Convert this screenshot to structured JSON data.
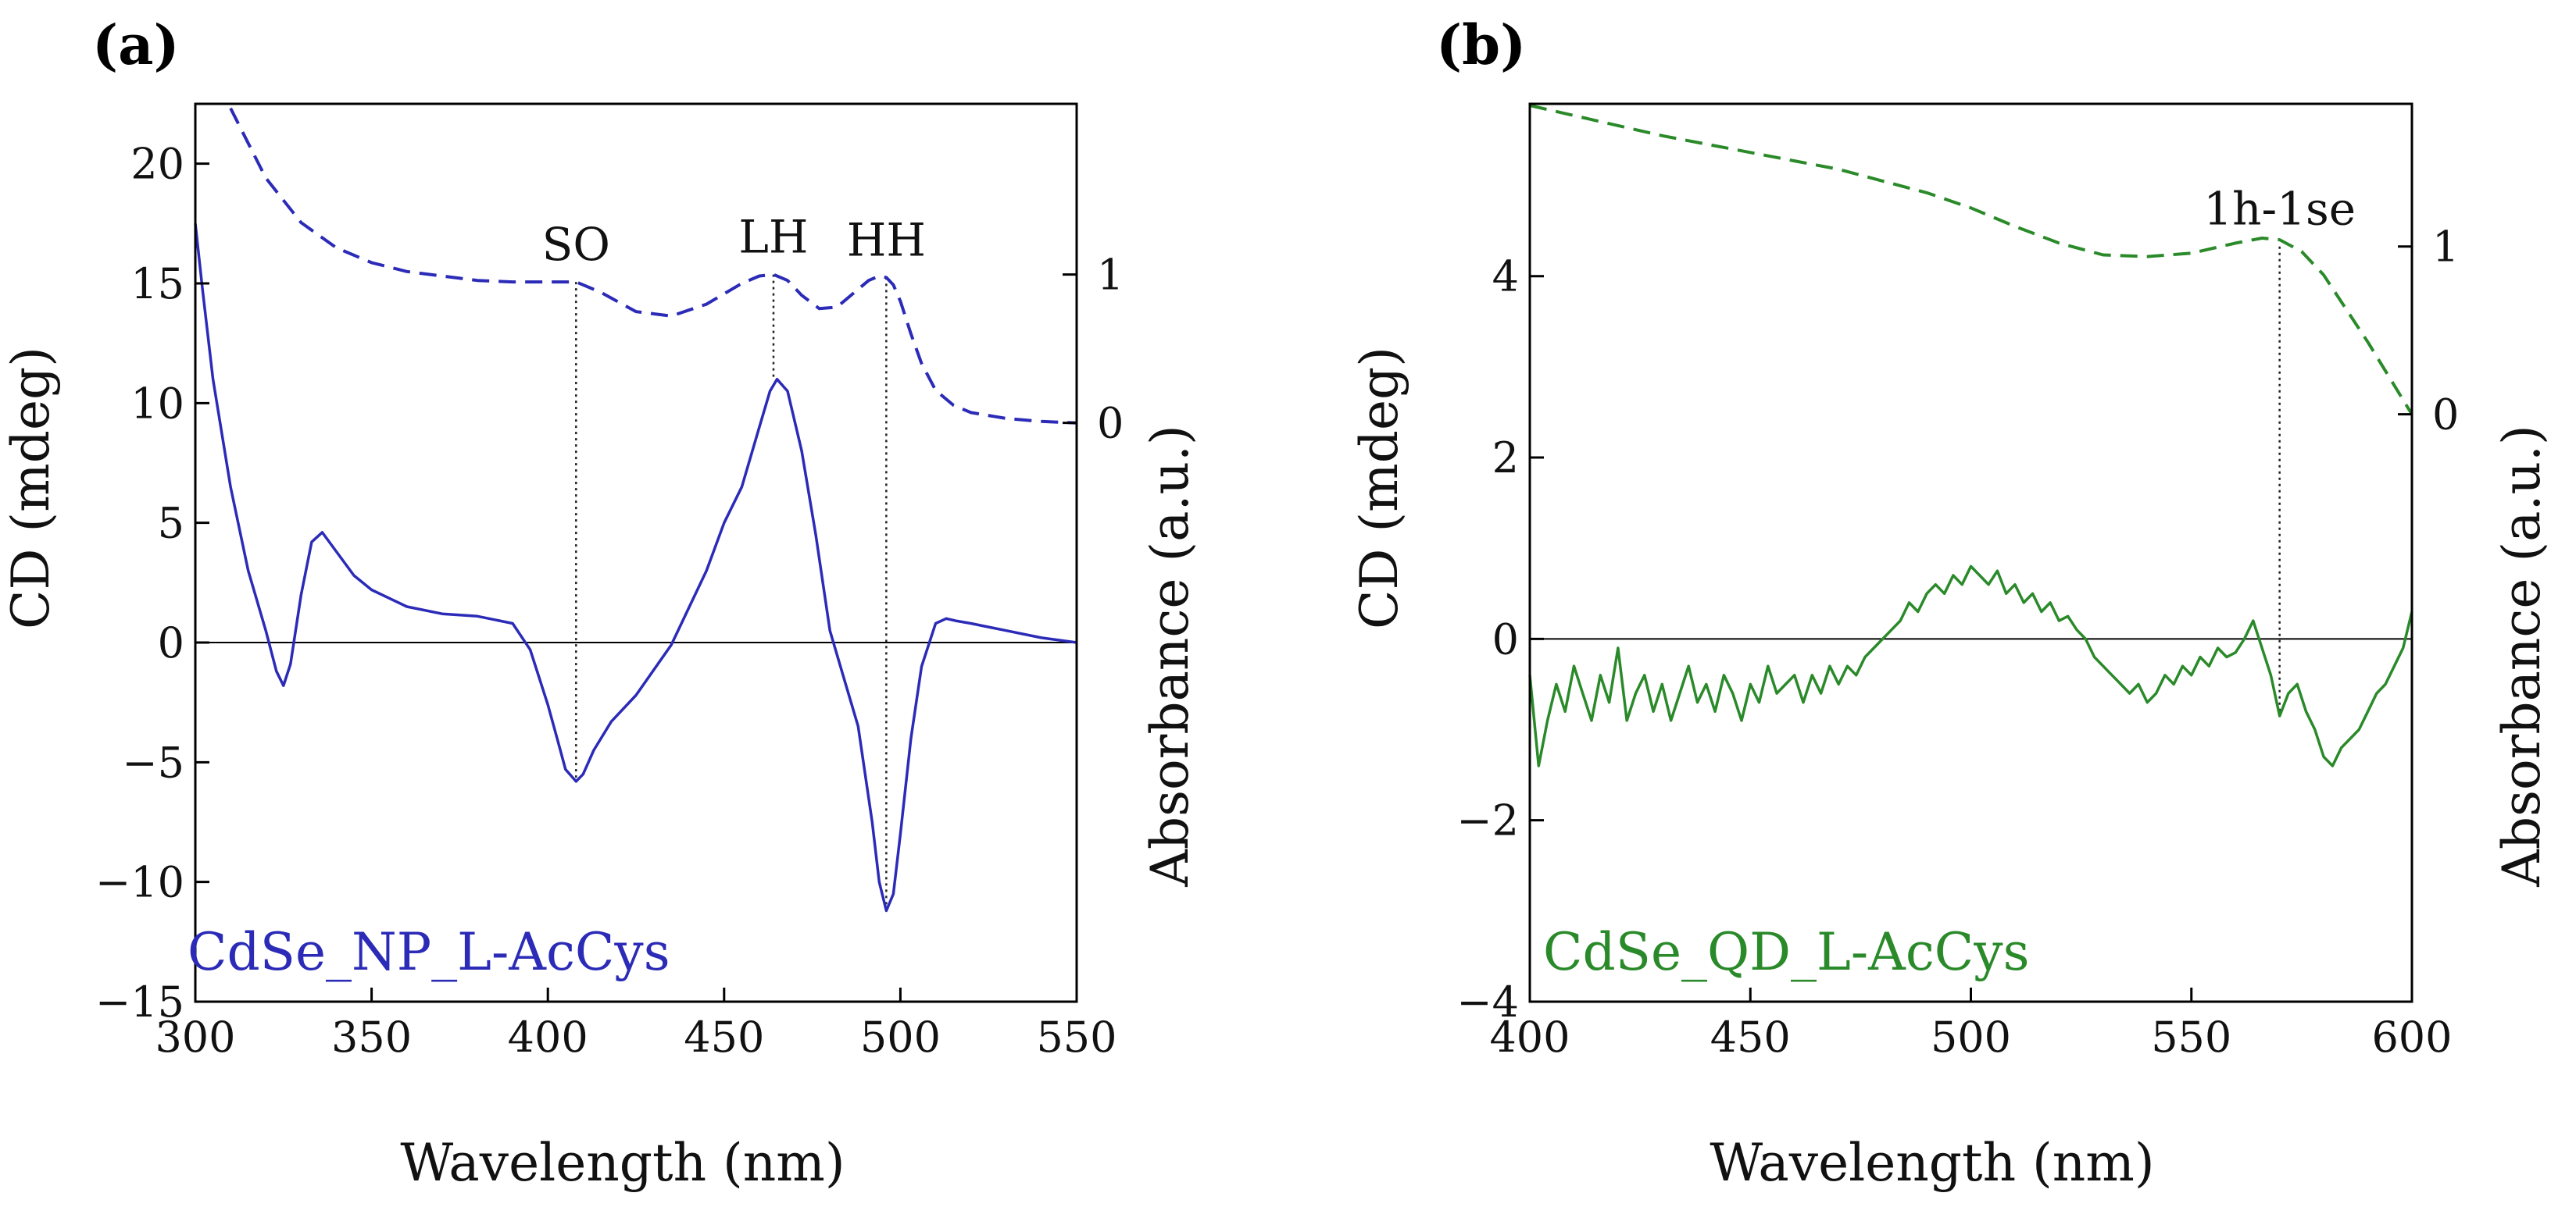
{
  "chart_data": [
    {
      "type": "line",
      "panel_label": "(a)",
      "title": "",
      "xlabel": "Wavelength (nm)",
      "ylabel": "CD (mdeg)",
      "y2label": "Absorbance (a.u.)",
      "xlim": [
        300,
        550
      ],
      "ylim": [
        -15,
        22.5
      ],
      "y2lim": [
        -3.9,
        2.15
      ],
      "xticks": [
        "300",
        "350",
        "400",
        "450",
        "500",
        "550"
      ],
      "yticks": [
        "20",
        "15",
        "10",
        "5",
        "0",
        "−5",
        "−10",
        "−15"
      ],
      "y2ticks": [
        "1",
        "0"
      ],
      "sample_label": "CdSe_NP_L-AcCys",
      "color": "#2b2bb8",
      "zero_line": true,
      "annotations": [
        {
          "text": "SO",
          "x": 408,
          "y_top": 0.95,
          "y_bottom": -5.7
        },
        {
          "text": "LH",
          "x": 464,
          "y_top": 1.0,
          "y_bottom": 11.0
        },
        {
          "text": "HH",
          "x": 496,
          "y_top": 0.98,
          "y_bottom": -11.0
        }
      ],
      "series": [
        {
          "name": "CD",
          "axis": "left",
          "style": "solid",
          "x": [
            300,
            302,
            305,
            310,
            315,
            320,
            323,
            325,
            327,
            330,
            333,
            336,
            340,
            345,
            350,
            360,
            370,
            380,
            390,
            395,
            400,
            403,
            405,
            408,
            410,
            413,
            418,
            425,
            435,
            445,
            450,
            455,
            460,
            463,
            465,
            468,
            472,
            476,
            480,
            484,
            488,
            492,
            494,
            496,
            498,
            500,
            503,
            506,
            510,
            513,
            516,
            520,
            530,
            540,
            550
          ],
          "y": [
            17.5,
            14.8,
            11.0,
            6.5,
            3.0,
            0.5,
            -1.2,
            -1.8,
            -0.9,
            2.0,
            4.2,
            4.6,
            3.8,
            2.8,
            2.2,
            1.5,
            1.2,
            1.1,
            0.8,
            -0.3,
            -2.6,
            -4.2,
            -5.3,
            -5.8,
            -5.5,
            -4.5,
            -3.3,
            -2.2,
            -0.1,
            3.0,
            5.0,
            6.5,
            9.0,
            10.5,
            11.0,
            10.5,
            8.0,
            4.5,
            0.5,
            -1.5,
            -3.5,
            -7.5,
            -10.0,
            -11.2,
            -10.5,
            -8.0,
            -4.0,
            -1.0,
            0.8,
            1.0,
            0.9,
            0.8,
            0.5,
            0.2,
            0.0
          ]
        },
        {
          "name": "Absorbance",
          "axis": "right",
          "style": "dashed",
          "x": [
            310,
            320,
            330,
            340,
            350,
            360,
            370,
            380,
            390,
            400,
            408,
            415,
            425,
            435,
            445,
            455,
            460,
            464,
            468,
            472,
            477,
            482,
            487,
            491,
            494,
            496,
            498,
            500,
            503,
            506,
            510,
            515,
            520,
            530,
            540,
            550
          ],
          "y": [
            2.12,
            1.65,
            1.35,
            1.18,
            1.08,
            1.02,
            0.99,
            0.96,
            0.95,
            0.95,
            0.95,
            0.88,
            0.75,
            0.72,
            0.8,
            0.94,
            0.99,
            1.0,
            0.96,
            0.86,
            0.77,
            0.78,
            0.88,
            0.96,
            0.99,
            0.98,
            0.93,
            0.82,
            0.6,
            0.4,
            0.22,
            0.12,
            0.07,
            0.03,
            0.01,
            0.0
          ]
        }
      ]
    },
    {
      "type": "line",
      "panel_label": "(b)",
      "title": "",
      "xlabel": "Wavelength (nm)",
      "ylabel": "CD (mdeg)",
      "y2label": "Absorbance (a.u.)",
      "xlim": [
        400,
        600
      ],
      "ylim": [
        -4,
        5.9
      ],
      "y2lim": [
        -3.5,
        1.85
      ],
      "xticks": [
        "400",
        "450",
        "500",
        "550",
        "600"
      ],
      "yticks": [
        "4",
        "2",
        "0",
        "−2",
        "−4"
      ],
      "y2ticks": [
        "1",
        "0"
      ],
      "sample_label": "CdSe_QD_L-AcCys",
      "color": "#2a8a2a",
      "zero_line": true,
      "annotations": [
        {
          "text": "1h-1se",
          "x": 570,
          "y_top": 1.0,
          "y_bottom": -0.85
        }
      ],
      "series": [
        {
          "name": "CD",
          "axis": "left",
          "style": "solid",
          "x": [
            400,
            402,
            404,
            406,
            408,
            410,
            412,
            414,
            416,
            418,
            420,
            422,
            424,
            426,
            428,
            430,
            432,
            434,
            436,
            438,
            440,
            442,
            444,
            446,
            448,
            450,
            452,
            454,
            456,
            458,
            460,
            462,
            464,
            466,
            468,
            470,
            472,
            474,
            476,
            478,
            480,
            482,
            484,
            486,
            488,
            490,
            492,
            494,
            496,
            498,
            500,
            502,
            504,
            506,
            508,
            510,
            512,
            514,
            516,
            518,
            520,
            522,
            524,
            526,
            528,
            530,
            532,
            534,
            536,
            538,
            540,
            542,
            544,
            546,
            548,
            550,
            552,
            554,
            556,
            558,
            560,
            562,
            564,
            566,
            568,
            570,
            572,
            574,
            576,
            578,
            580,
            582,
            584,
            586,
            588,
            590,
            592,
            594,
            596,
            598,
            600
          ],
          "y": [
            -0.4,
            -1.4,
            -0.9,
            -0.5,
            -0.8,
            -0.3,
            -0.6,
            -0.9,
            -0.4,
            -0.7,
            -0.1,
            -0.9,
            -0.6,
            -0.4,
            -0.8,
            -0.5,
            -0.9,
            -0.6,
            -0.3,
            -0.7,
            -0.5,
            -0.8,
            -0.4,
            -0.6,
            -0.9,
            -0.5,
            -0.7,
            -0.3,
            -0.6,
            -0.5,
            -0.4,
            -0.7,
            -0.4,
            -0.6,
            -0.3,
            -0.5,
            -0.3,
            -0.4,
            -0.2,
            -0.1,
            0.0,
            0.1,
            0.2,
            0.4,
            0.3,
            0.5,
            0.6,
            0.5,
            0.7,
            0.6,
            0.8,
            0.7,
            0.6,
            0.75,
            0.5,
            0.6,
            0.4,
            0.5,
            0.3,
            0.4,
            0.2,
            0.25,
            0.1,
            0.0,
            -0.2,
            -0.3,
            -0.4,
            -0.5,
            -0.6,
            -0.5,
            -0.7,
            -0.6,
            -0.4,
            -0.5,
            -0.3,
            -0.4,
            -0.2,
            -0.3,
            -0.1,
            -0.2,
            -0.15,
            0.0,
            0.2,
            -0.1,
            -0.4,
            -0.85,
            -0.6,
            -0.5,
            -0.8,
            -1.0,
            -1.3,
            -1.4,
            -1.2,
            -1.1,
            -1.0,
            -0.8,
            -0.6,
            -0.5,
            -0.3,
            -0.1,
            0.3
          ]
        },
        {
          "name": "Absorbance",
          "axis": "right",
          "style": "dashed",
          "x": [
            400,
            410,
            420,
            430,
            440,
            450,
            460,
            470,
            480,
            490,
            500,
            510,
            520,
            530,
            540,
            550,
            560,
            566,
            570,
            575,
            580,
            590,
            600
          ],
          "y": [
            1.84,
            1.78,
            1.72,
            1.66,
            1.61,
            1.56,
            1.51,
            1.46,
            1.39,
            1.32,
            1.23,
            1.12,
            1.02,
            0.95,
            0.94,
            0.96,
            1.02,
            1.05,
            1.04,
            0.97,
            0.83,
            0.43,
            0.0
          ]
        }
      ]
    }
  ]
}
